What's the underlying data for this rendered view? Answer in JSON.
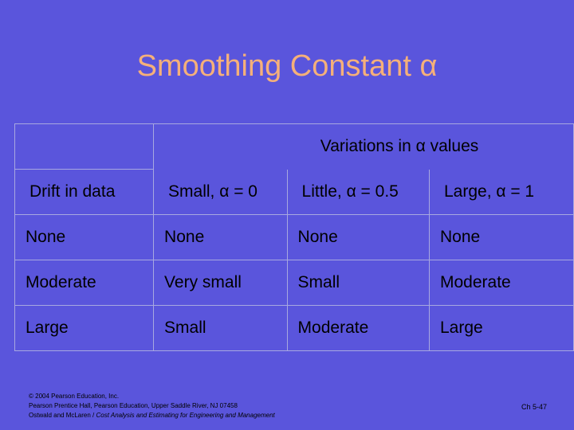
{
  "title": "Smoothing Constant α",
  "table": {
    "group_header": "Variations in α values",
    "columns": [
      "Drift in data",
      "Small, α = 0",
      "Little, α = 0.5",
      "Large, α = 1"
    ],
    "rows": [
      [
        "None",
        "None",
        "None",
        "None"
      ],
      [
        "Moderate",
        "Very small",
        "Small",
        "Moderate"
      ],
      [
        "Large",
        "Small",
        "Moderate",
        "Large"
      ]
    ]
  },
  "footer": {
    "copyright": "© 2004 Pearson Education, Inc.",
    "publisher": "Pearson Prentice Hall, Pearson Education, Upper Saddle River, NJ 07458",
    "authors": "Ostwald and McLaren / ",
    "book": "Cost Analysis and Estimating for Engineering and Management",
    "page": "Ch 5-47"
  }
}
